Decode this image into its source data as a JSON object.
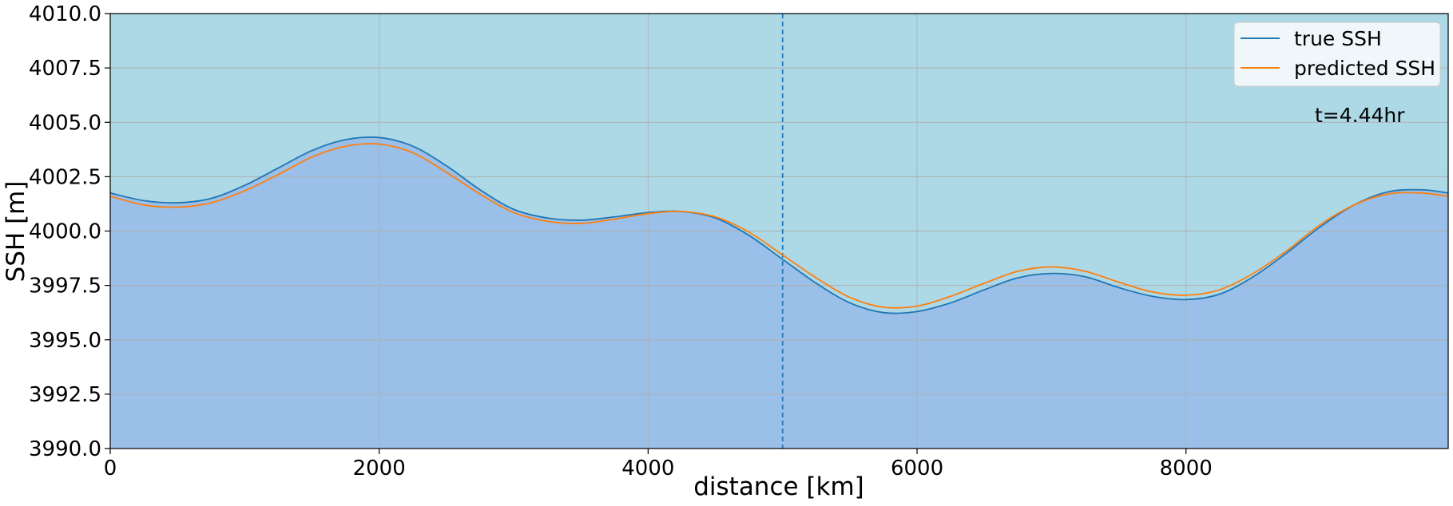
{
  "chart_data": {
    "type": "line",
    "xlabel": "distance [km]",
    "ylabel": "SSH [m]",
    "xlim": [
      0,
      9950
    ],
    "ylim": [
      3990.0,
      4010.0
    ],
    "xticks": [
      0,
      2000,
      4000,
      6000,
      8000
    ],
    "xtick_labels": [
      "0",
      "2000",
      "4000",
      "6000",
      "8000"
    ],
    "yticks": [
      3990.0,
      3992.5,
      3995.0,
      3997.5,
      4000.0,
      4002.5,
      4005.0,
      4007.5,
      4010.0
    ],
    "ytick_labels": [
      "3990.0",
      "3992.5",
      "3995.0",
      "3997.5",
      "4000.0",
      "4002.5",
      "4005.0",
      "4007.5",
      "4010.0"
    ],
    "grid": true,
    "legend_position": "top-right",
    "annotation": "t=4.44hr",
    "vertical_line_x": 5000,
    "colors": {
      "background_fill": "#add8e6",
      "area_fill": "#9abfe8",
      "true_line": "#1f77b4",
      "pred_line": "#ff7f0e",
      "grid": "#b0b0b0",
      "vline": "#1f77b4"
    },
    "x": [
      0,
      250,
      500,
      750,
      1000,
      1250,
      1500,
      1750,
      2000,
      2250,
      2500,
      2750,
      3000,
      3250,
      3500,
      3750,
      4000,
      4250,
      4500,
      4750,
      5000,
      5250,
      5500,
      5750,
      6000,
      6250,
      6500,
      6750,
      7000,
      7250,
      7500,
      7750,
      8000,
      8250,
      8500,
      8750,
      9000,
      9250,
      9500,
      9750,
      9950
    ],
    "series": [
      {
        "name": "true SSH",
        "values": [
          4001.75,
          4001.4,
          4001.3,
          4001.5,
          4002.1,
          4002.9,
          4003.7,
          4004.2,
          4004.3,
          4003.9,
          4003.0,
          4001.9,
          4001.0,
          4000.6,
          4000.5,
          4000.65,
          4000.85,
          4000.9,
          4000.6,
          3999.8,
          3998.7,
          3997.6,
          3996.7,
          3996.25,
          3996.3,
          3996.7,
          3997.3,
          3997.85,
          3998.05,
          3997.9,
          3997.4,
          3997.0,
          3996.85,
          3997.1,
          3997.9,
          3999.0,
          4000.2,
          4001.2,
          4001.8,
          4001.9,
          4001.75
        ]
      },
      {
        "name": "predicted SSH",
        "values": [
          4001.6,
          4001.2,
          4001.1,
          4001.3,
          4001.85,
          4002.6,
          4003.4,
          4003.9,
          4004.0,
          4003.6,
          4002.7,
          4001.7,
          4000.85,
          4000.45,
          4000.35,
          4000.55,
          4000.8,
          4000.9,
          4000.65,
          3999.95,
          3998.9,
          3997.85,
          3996.95,
          3996.5,
          3996.55,
          3997.0,
          3997.6,
          3998.15,
          3998.35,
          3998.15,
          3997.65,
          3997.2,
          3997.05,
          3997.3,
          3998.05,
          3999.1,
          4000.3,
          4001.2,
          4001.7,
          4001.75,
          4001.6
        ]
      }
    ]
  }
}
